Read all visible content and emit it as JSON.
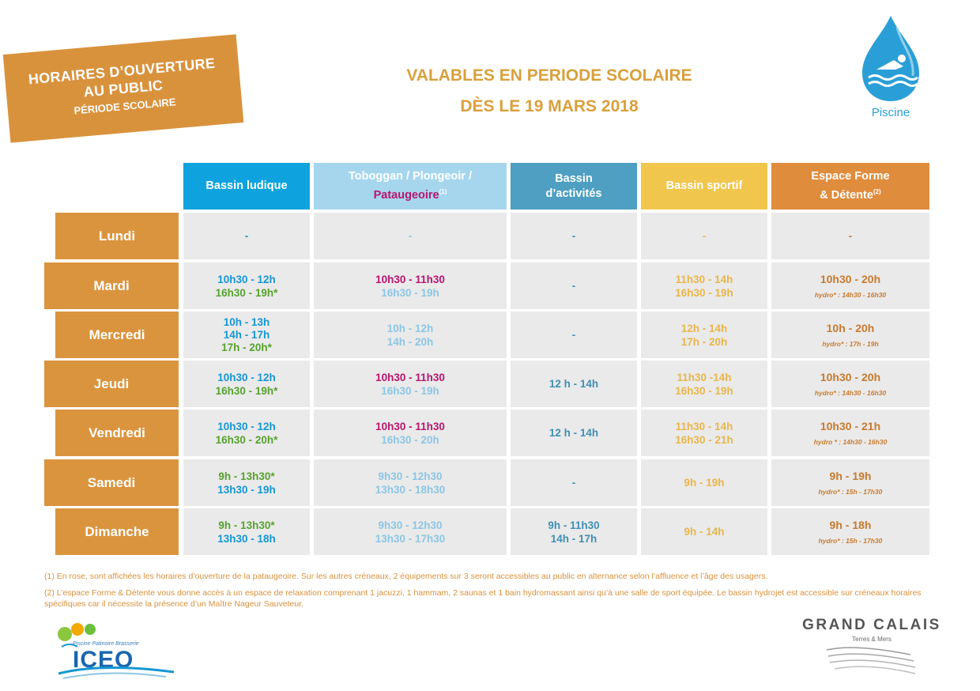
{
  "header": {
    "ribbon": {
      "line1": "HORAIRES D’OUVERTURE",
      "line2": "AU PUBLIC",
      "line3": "PÉRIODE SCOLAIRE"
    },
    "headline1": "VALABLES EN PERIODE SCOLAIRE",
    "headline2": "DÈS LE 19 MARS 2018",
    "piscine_label": "Piscine"
  },
  "columns": {
    "c1": "Bassin ludique",
    "c2_a": "Toboggan / Plongeoir /",
    "c2_b": "Pataugeoire",
    "c2_note": "(1)",
    "c3_a": "Bassin",
    "c3_b": "d’activités",
    "c4": "Bassin sportif",
    "c5_a": "Espace Forme",
    "c5_b": "& Détente",
    "c5_note": "(2)"
  },
  "rows": [
    {
      "day": "Lundi",
      "c1": [
        "-"
      ],
      "c2": [
        "-"
      ],
      "c3": "-",
      "c4": [
        "-"
      ],
      "c5": {
        "main": "-",
        "sub": ""
      }
    },
    {
      "day": "Mardi",
      "c1": [
        "10h30 - 12h",
        "16h30 - 19h*"
      ],
      "c2": [
        "10h30 - 11h30",
        "16h30 - 19h"
      ],
      "c3": "-",
      "c4": [
        "11h30 - 14h",
        "16h30 - 19h"
      ],
      "c5": {
        "main": "10h30 - 20h",
        "sub": "hydro* : 14h30 - 16h30"
      }
    },
    {
      "day": "Mercredi",
      "c1": [
        "10h - 13h",
        "14h - 17h",
        "17h - 20h*"
      ],
      "c2": [
        "10h - 12h",
        "14h - 20h"
      ],
      "c3": "-",
      "c4": [
        "12h - 14h",
        "17h - 20h"
      ],
      "c5": {
        "main": "10h - 20h",
        "sub": "hydro* : 17h - 19h"
      }
    },
    {
      "day": "Jeudi",
      "c1": [
        "10h30 - 12h",
        "16h30 - 19h*"
      ],
      "c2": [
        "10h30 - 11h30",
        "16h30 - 19h"
      ],
      "c3": "12 h - 14h",
      "c4": [
        "11h30 -14h",
        "16h30 - 19h"
      ],
      "c5": {
        "main": "10h30 - 20h",
        "sub": "hydro* : 14h30 - 16h30"
      }
    },
    {
      "day": "Vendredi",
      "c1": [
        "10h30 - 12h",
        "16h30 - 20h*"
      ],
      "c2": [
        "10h30 - 11h30",
        "16h30 - 20h"
      ],
      "c3": "12 h - 14h",
      "c4": [
        "11h30 - 14h",
        "16h30 - 21h"
      ],
      "c5": {
        "main": "10h30 - 21h",
        "sub": "hydro * : 14h30 - 16h30"
      }
    },
    {
      "day": "Samedi",
      "c1": [
        "9h - 13h30*",
        "13h30 - 19h"
      ],
      "c2": [
        "9h30 - 12h30",
        "13h30 - 18h30"
      ],
      "c3": "-",
      "c4": [
        "9h - 19h"
      ],
      "c5": {
        "main": "9h - 19h",
        "sub": "hydro* : 15h - 17h30"
      }
    },
    {
      "day": "Dimanche",
      "c1": [
        "9h - 13h30*",
        "13h30 - 18h"
      ],
      "c2": [
        "9h30 - 12h30",
        "13h30 - 17h30"
      ],
      "c3": "9h - 11h30\n14h - 17h",
      "c4": [
        "9h - 14h"
      ],
      "c5": {
        "main": "9h - 18h",
        "sub": "hydro* : 15h - 17h30"
      }
    }
  ],
  "notes": {
    "n1": "(1) En rose, sont affichées les horaires d’ouverture de la pataugeoire. Sur les autres créneaux, 2 équipements sur 3 seront accessibles au public en alternance selon l’affluence et l’âge des usagers.",
    "n2": "(2) L’espace Forme & Détente vous donne accès à un espace de relaxation comprenant 1 jacuzzi, 1 hammam, 2 saunas et 1 bain hydromassant ainsi qu’à une salle de sport équipée. Le bassin hydrojet est accessible sur créneaux horaires spécifiques car il nécessite la présence d’un Maître Nageur Sauveteur."
  },
  "logos": {
    "iceo_tagline": "Piscine Patinoire Brasserie",
    "iceo_name": "ICEO",
    "gc_title": "GRAND CALAIS",
    "gc_sub": "Terres & Mers"
  },
  "colors": {
    "orange": "#d9923c",
    "blue": "#1597d3",
    "green": "#56a22e",
    "pink": "#b8156e",
    "lightblue": "#8cc6e4",
    "yellow": "#e8b64a"
  }
}
